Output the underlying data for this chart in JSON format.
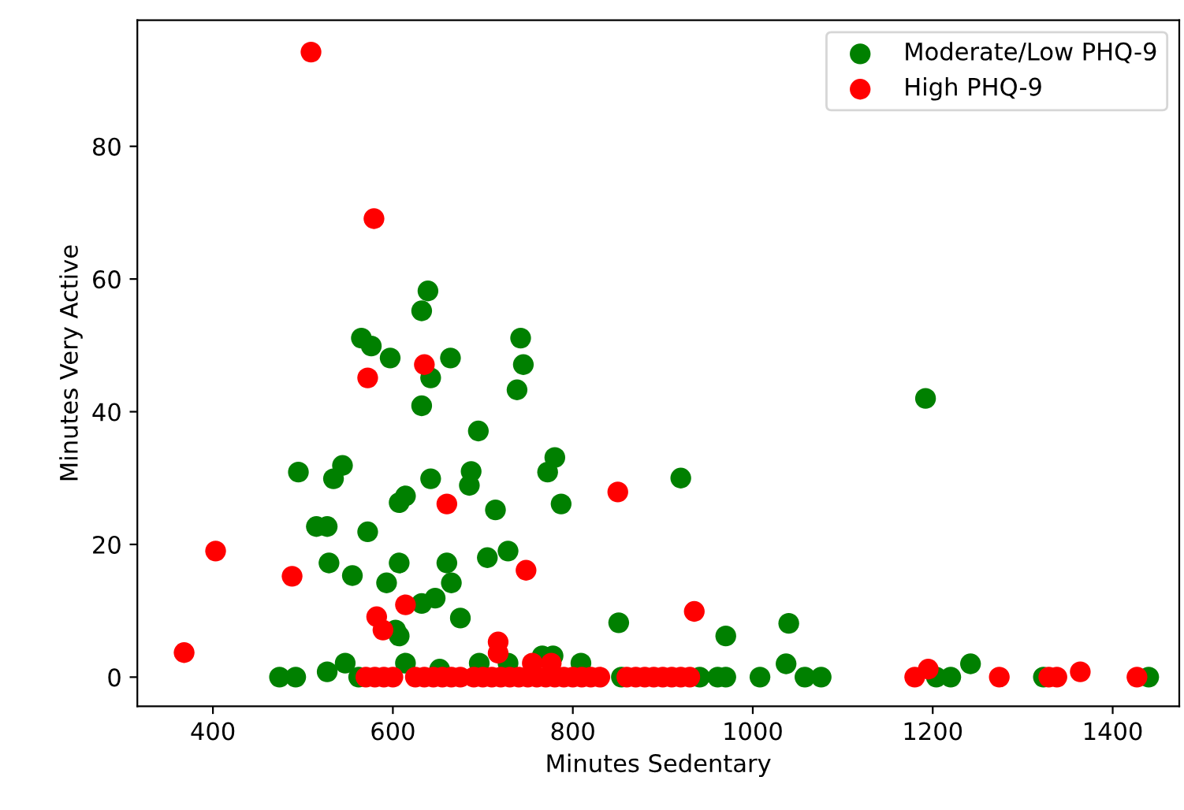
{
  "chart_data": {
    "type": "scatter",
    "xlabel": "Minutes Sedentary",
    "ylabel": "Minutes Very Active",
    "xlim": [
      316,
      1474
    ],
    "ylim": [
      -4.4,
      99
    ],
    "xticks": [
      400,
      600,
      800,
      1000,
      1200,
      1400
    ],
    "yticks": [
      0,
      20,
      40,
      60,
      80
    ],
    "grid": false,
    "legend": "top right",
    "marker": "circle",
    "series": [
      {
        "name": "Moderate/Low PHQ-9",
        "color": "#008000",
        "x": [
          639,
          632,
          565,
          576,
          597,
          664,
          742,
          745,
          738,
          642,
          632,
          695,
          495,
          544,
          534,
          642,
          687,
          685,
          780,
          772,
          787,
          714,
          614,
          607,
          515,
          527,
          572,
          529,
          555,
          607,
          593,
          660,
          665,
          705,
          728,
          647,
          632,
          675,
          603,
          607,
          851,
          474,
          492,
          527,
          547,
          614,
          652,
          696,
          728,
          766,
          778,
          809,
          562,
          854,
          920,
          1192,
          970,
          1040,
          1037,
          941,
          961,
          970,
          1008,
          1058,
          1076,
          1204,
          1220,
          1242,
          1323,
          1440
        ],
        "values": [
          58.2,
          55.2,
          51.1,
          49.9,
          48.1,
          48.1,
          51.1,
          47.1,
          43.3,
          45.1,
          40.9,
          37.1,
          30.9,
          31.9,
          29.9,
          29.9,
          31.0,
          28.9,
          33.1,
          30.9,
          26.1,
          25.2,
          27.3,
          26.3,
          22.7,
          22.7,
          21.9,
          17.2,
          15.3,
          17.2,
          14.2,
          17.2,
          14.2,
          18.0,
          19.0,
          11.9,
          11.1,
          8.9,
          7.1,
          6.2,
          8.2,
          0,
          0,
          0.8,
          2.1,
          2.1,
          1.2,
          2.1,
          2.1,
          3.2,
          3.2,
          2.1,
          0,
          0,
          30,
          42,
          6.2,
          8.1,
          2.0,
          0,
          0,
          0,
          0,
          0,
          0,
          0,
          0,
          2.0,
          0,
          0
        ]
      },
      {
        "name": "High PHQ-9",
        "color": "#ff0000",
        "x": [
          509,
          579,
          635,
          572,
          660,
          850,
          403,
          488,
          748,
          614,
          582,
          589,
          368,
          717,
          717,
          755,
          776,
          935,
          570,
          580,
          590,
          600,
          625,
          635,
          645,
          655,
          665,
          675,
          690,
          700,
          710,
          720,
          730,
          740,
          750,
          760,
          770,
          780,
          790,
          800,
          810,
          820,
          830,
          860,
          870,
          880,
          890,
          900,
          910,
          920,
          930,
          1180,
          1195,
          1274,
          1329,
          1338,
          1364,
          1427
        ],
        "values": [
          94.2,
          69.1,
          47.1,
          45.1,
          26.1,
          27.9,
          19.0,
          15.2,
          16.1,
          10.9,
          9.1,
          7.1,
          3.7,
          5.3,
          3.6,
          2.1,
          2.1,
          9.9,
          0,
          0,
          0,
          0,
          0,
          0,
          0,
          0,
          0,
          0,
          0,
          0,
          0,
          0,
          0,
          0,
          0,
          0,
          0,
          0,
          0,
          0,
          0,
          0,
          0,
          0,
          0,
          0,
          0,
          0,
          0,
          0,
          0,
          0,
          1.2,
          0,
          0,
          0,
          0.8,
          0
        ]
      }
    ]
  }
}
